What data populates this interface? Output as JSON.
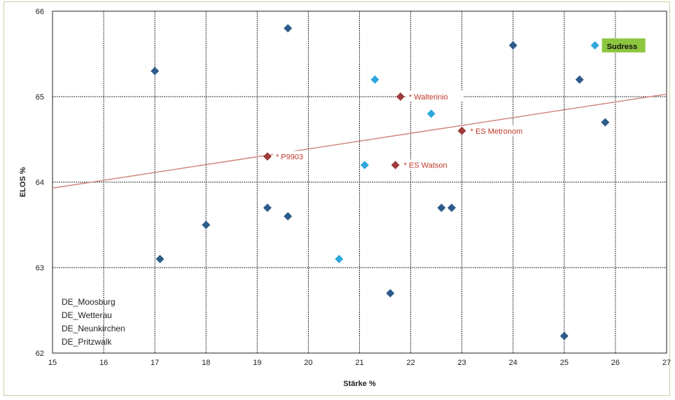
{
  "chart_data": {
    "type": "scatter",
    "xlabel": "Stärke %",
    "ylabel": "ELOS %",
    "xlim": [
      15,
      27
    ],
    "ylim": [
      62,
      66
    ],
    "xticks": [
      "15",
      "16",
      "17",
      "18",
      "19",
      "20",
      "21",
      "22",
      "23",
      "24",
      "25",
      "26",
      "27"
    ],
    "yticks": [
      "62",
      "63",
      "64",
      "65",
      "66"
    ],
    "grid": true,
    "trendline": {
      "x": [
        15,
        27
      ],
      "y": [
        63.93,
        65.03
      ],
      "color": "#d08a80"
    },
    "series": [
      {
        "color": "#2e5c8a",
        "points": [
          {
            "x": 17.0,
            "y": 65.3
          },
          {
            "x": 19.6,
            "y": 65.8
          },
          {
            "x": 24.0,
            "y": 65.6
          },
          {
            "x": 25.3,
            "y": 65.2
          },
          {
            "x": 25.8,
            "y": 64.7
          },
          {
            "x": 19.2,
            "y": 63.7
          },
          {
            "x": 19.6,
            "y": 63.6
          },
          {
            "x": 18.0,
            "y": 63.5
          },
          {
            "x": 17.1,
            "y": 63.1
          },
          {
            "x": 22.6,
            "y": 63.7
          },
          {
            "x": 22.8,
            "y": 63.7
          },
          {
            "x": 21.6,
            "y": 62.7
          },
          {
            "x": 25.0,
            "y": 62.2
          }
        ]
      },
      {
        "color": "#2ea7dd",
        "points": [
          {
            "x": 21.3,
            "y": 65.2
          },
          {
            "x": 22.4,
            "y": 64.8
          },
          {
            "x": 21.1,
            "y": 64.2
          },
          {
            "x": 20.6,
            "y": 63.1
          },
          {
            "x": 25.6,
            "y": 65.6
          }
        ]
      },
      {
        "color": "#9e3a3a",
        "points": [
          {
            "x": 21.8,
            "y": 65.0,
            "label": "* Walterinio"
          },
          {
            "x": 23.0,
            "y": 64.6,
            "label": "* ES Metronom"
          },
          {
            "x": 19.2,
            "y": 64.3,
            "label": "* P9903"
          },
          {
            "x": 21.7,
            "y": 64.2,
            "label": "* ES Watson"
          }
        ]
      }
    ],
    "annotations": [
      {
        "text": "Sudress",
        "x": 25.6,
        "y": 65.6,
        "bg": "#8dc63f"
      }
    ],
    "legend_text": [
      "DE_Moosburg",
      "DE_Wetterau",
      "DE_Neunkirchen",
      "DE_Pritzwalk"
    ]
  }
}
